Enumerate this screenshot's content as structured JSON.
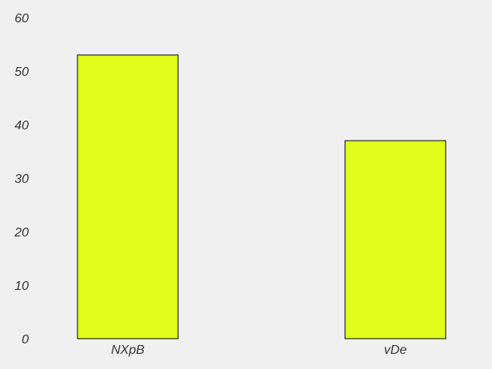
{
  "colors": {
    "background": "#f0f0f0",
    "bar_fill": "#dfff1a",
    "bar_edge": "#000000",
    "text": "#333333"
  },
  "chart_data": {
    "type": "bar",
    "title": "",
    "xlabel": "",
    "ylabel": "",
    "categories": [
      "NXpB",
      "vDe"
    ],
    "values": [
      53,
      37
    ],
    "ylim": [
      0,
      60
    ],
    "yticks": [
      0,
      10,
      20,
      30,
      40,
      50,
      60
    ],
    "grid": false,
    "legend": "none"
  }
}
